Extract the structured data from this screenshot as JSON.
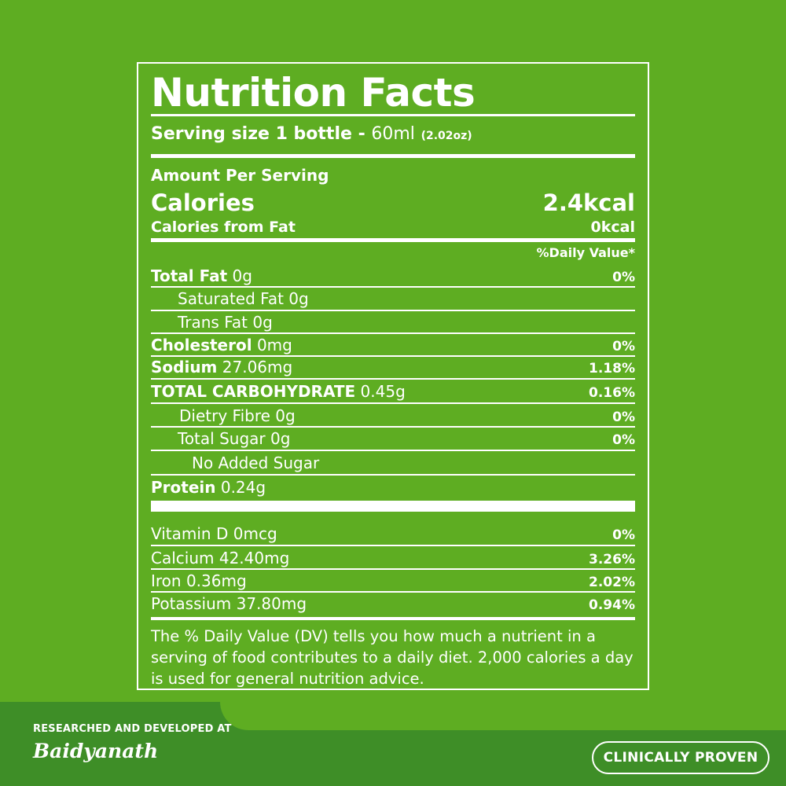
{
  "panel": {
    "title": "Nutrition Facts",
    "serving": {
      "label": "Serving size 1 bottle - ",
      "value": "60ml",
      "alt": "(2.02oz)"
    },
    "amount_label": "Amount Per Serving",
    "calories": {
      "label": "Calories",
      "value": "2.4kcal"
    },
    "calories_fat": {
      "label": "Calories from Fat",
      "value": "0kcal"
    },
    "dv_header": "%Daily Value*",
    "nutrients": [
      {
        "name": "Total Fat",
        "amount": "0g",
        "dv": "0%"
      },
      {
        "name": "Saturated Fat",
        "amount": "0g",
        "dv": ""
      },
      {
        "name": "Trans Fat",
        "amount": "0g",
        "dv": ""
      },
      {
        "name": "Cholesterol",
        "amount": "0mg",
        "dv": "0%"
      },
      {
        "name": "Sodium",
        "amount": "27.06mg",
        "dv": "1.18%"
      },
      {
        "name": "TOTAL CARBOHYDRATE",
        "amount": "0.45g",
        "dv": "0.16%"
      },
      {
        "name": "Dietry Fibre",
        "amount": "0g",
        "dv": "0%"
      },
      {
        "name": "Total Sugar",
        "amount": "0g",
        "dv": "0%"
      },
      {
        "name": "No Added Sugar",
        "amount": "",
        "dv": ""
      },
      {
        "name": "Protein",
        "amount": "0.24g",
        "dv": ""
      }
    ],
    "vitamins": [
      {
        "name": "Vitamin D",
        "amount": "0mcg",
        "dv": "0%"
      },
      {
        "name": "Calcium",
        "amount": "42.40mg",
        "dv": "3.26%"
      },
      {
        "name": "Iron",
        "amount": "0.36mg",
        "dv": "2.02%"
      },
      {
        "name": "Potassium",
        "amount": "37.80mg",
        "dv": "0.94%"
      }
    ],
    "footnote": "The % Daily Value (DV) tells you how much a nutrient in a serving of food contributes to a daily diet. 2,000 calories a day is used for general nutrition advice."
  },
  "footer": {
    "researched": "RESEARCHED AND DEVELOPED AT",
    "brand": "Baidyanath",
    "badge": "CLINICALLY PROVEN"
  },
  "colors": {
    "background": "#5ead22",
    "band": "#3e8e27",
    "text": "#ffffff"
  }
}
